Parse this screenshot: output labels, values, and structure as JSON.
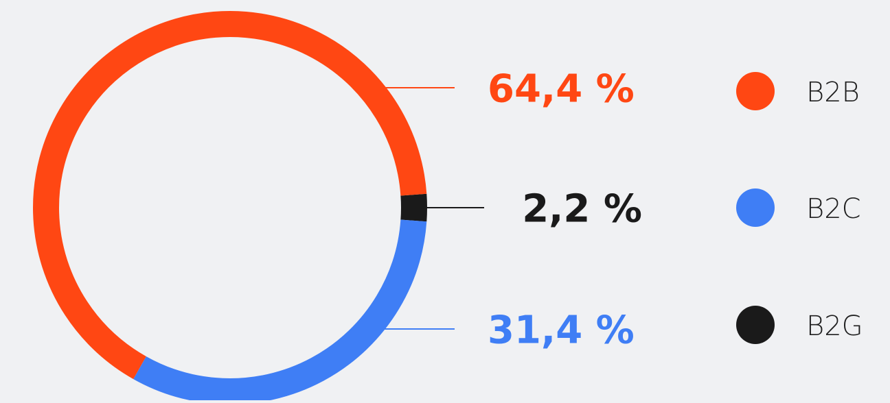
{
  "chart_data": {
    "type": "donut",
    "categories": [
      "B2B",
      "B2C",
      "B2G"
    ],
    "values": [
      64.4,
      31.4,
      2.2
    ],
    "value_labels": [
      "64,4 %",
      "31,4 %",
      "2,2 %"
    ],
    "colors": [
      "#ff4713",
      "#3f7ef5",
      "#1a1a1a"
    ]
  }
}
